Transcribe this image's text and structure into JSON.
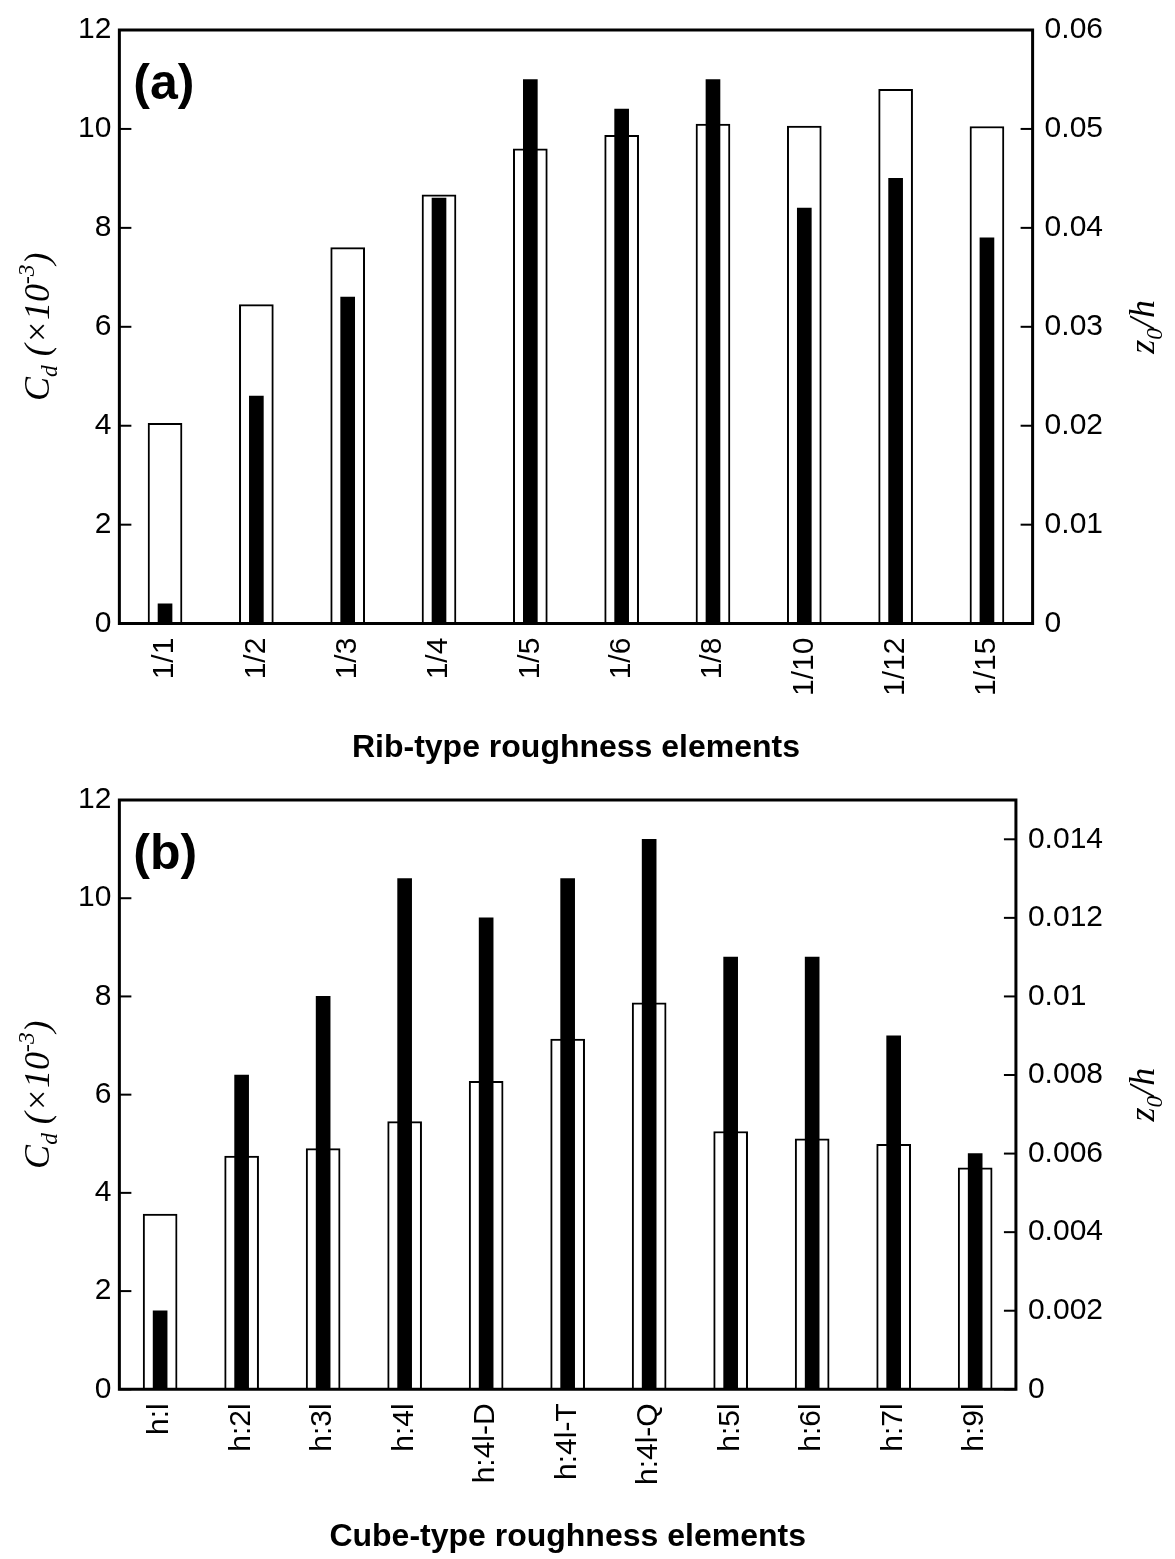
{
  "chart_data": [
    {
      "type": "bar",
      "title": "(a)",
      "xlabel": "Rib-type roughness elements",
      "ylabel": "C$_{d}$ (×10$^{-3}$)",
      "y2label": "z$_{0}$/h",
      "categories": [
        "1/1",
        "1/2",
        "1/3",
        "1/4",
        "1/5",
        "1/6",
        "1/8",
        "1/10",
        "1/12",
        "1/15"
      ],
      "series": [
        {
          "color": "#ffffff",
          "values": [
            4.05,
            6.45,
            7.6,
            8.67,
            9.6,
            9.87,
            10.1,
            10.06,
            10.8,
            10.05
          ]
        },
        {
          "color": "#000000",
          "axis": "y2",
          "values": [
            0.002,
            0.023,
            0.033,
            0.043,
            0.055,
            0.052,
            0.055,
            0.042,
            0.045,
            0.039
          ]
        }
      ],
      "ylim": [
        0,
        12
      ],
      "yticks": [
        0,
        2,
        4,
        6,
        8,
        10,
        12
      ],
      "y2lim": [
        0,
        0.06
      ],
      "y2ticks": [
        0,
        0.01,
        0.02,
        0.03,
        0.04,
        0.05,
        0.06
      ],
      "grid": false,
      "legend": false
    },
    {
      "type": "bar",
      "title": "(b)",
      "xlabel": "Cube-type roughness elements",
      "ylabel": "C$_{d}$ (×10$^{-3}$)",
      "y2label": "z$_{0}$/h",
      "categories": [
        "h:l",
        "h:2l",
        "h:3l",
        "h:4l",
        "h:4l-D",
        "h:4l-T",
        "h:4l-Q",
        "h:5l",
        "h:6l",
        "h:7l",
        "h:9l"
      ],
      "series": [
        {
          "color": "#ffffff",
          "values": [
            3.57,
            4.75,
            4.9,
            5.45,
            6.27,
            7.13,
            7.87,
            5.25,
            5.1,
            4.99,
            4.51
          ]
        },
        {
          "color": "#000000",
          "axis": "y2",
          "values": [
            0.002,
            0.008,
            0.01,
            0.013,
            0.012,
            0.013,
            0.014,
            0.011,
            0.011,
            0.009,
            0.006
          ]
        }
      ],
      "ylim": [
        0,
        12
      ],
      "yticks": [
        0,
        2,
        4,
        6,
        8,
        10,
        12
      ],
      "y2lim": [
        0,
        0.015
      ],
      "y2ticks": [
        0,
        0.002,
        0.004,
        0.006,
        0.008,
        0.01,
        0.012,
        0.014
      ],
      "grid": false,
      "legend": false
    }
  ]
}
